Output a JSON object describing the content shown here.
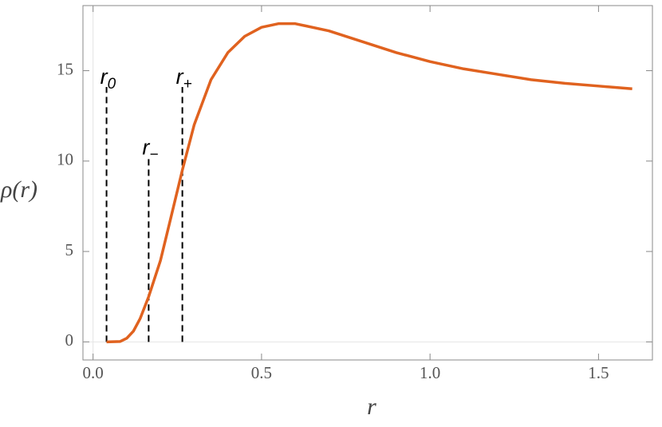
{
  "chart_data": {
    "type": "line",
    "x_label": "r",
    "y_label": "ρ(r)",
    "x": [
      0.04,
      0.08,
      0.1,
      0.12,
      0.14,
      0.165,
      0.2,
      0.23,
      0.265,
      0.3,
      0.35,
      0.4,
      0.45,
      0.5,
      0.55,
      0.6,
      0.7,
      0.8,
      0.9,
      1.0,
      1.1,
      1.2,
      1.3,
      1.4,
      1.5,
      1.6
    ],
    "series": [
      {
        "color": "#e0621f",
        "values": [
          0,
          0.02,
          0.2,
          0.6,
          1.3,
          2.5,
          4.5,
          6.8,
          9.5,
          12.0,
          14.5,
          16.0,
          16.9,
          17.4,
          17.6,
          17.6,
          17.2,
          16.6,
          16.0,
          15.5,
          15.1,
          14.8,
          14.5,
          14.3,
          14.15,
          14.0
        ]
      }
    ],
    "markers": [
      {
        "label": "r",
        "subscript": "0",
        "x": 0.04,
        "top": 14.1
      },
      {
        "label": "r",
        "subscript": "−",
        "x": 0.165,
        "top": 10.2
      },
      {
        "label": "r",
        "subscript": "+",
        "x": 0.265,
        "top": 14.1
      }
    ],
    "xlim": [
      -0.03,
      1.66
    ],
    "ylim": [
      -1,
      18.6
    ],
    "xticks": [
      {
        "value": 0,
        "label": "0.0"
      },
      0.5,
      {
        "value": 1,
        "label": "1.0"
      },
      1.5
    ],
    "yticks": [
      0,
      5,
      10,
      15
    ]
  }
}
